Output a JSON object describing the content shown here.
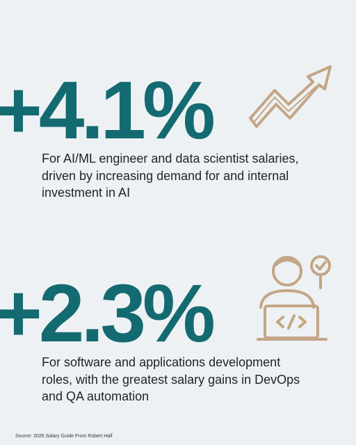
{
  "stats": [
    {
      "value": "+4.1%",
      "description": [
        "For AI/ML engineer and data scientist salaries,",
        "driven by increasing demand for and internal",
        "investment in AI"
      ]
    },
    {
      "value": "+2.3%",
      "description": [
        "For software and applications development",
        "roles, with the greatest salary gains in DevOps",
        "and QA automation"
      ]
    }
  ],
  "footer": {
    "source": "Source: 2026 Salary Guide From Robert Half"
  }
}
